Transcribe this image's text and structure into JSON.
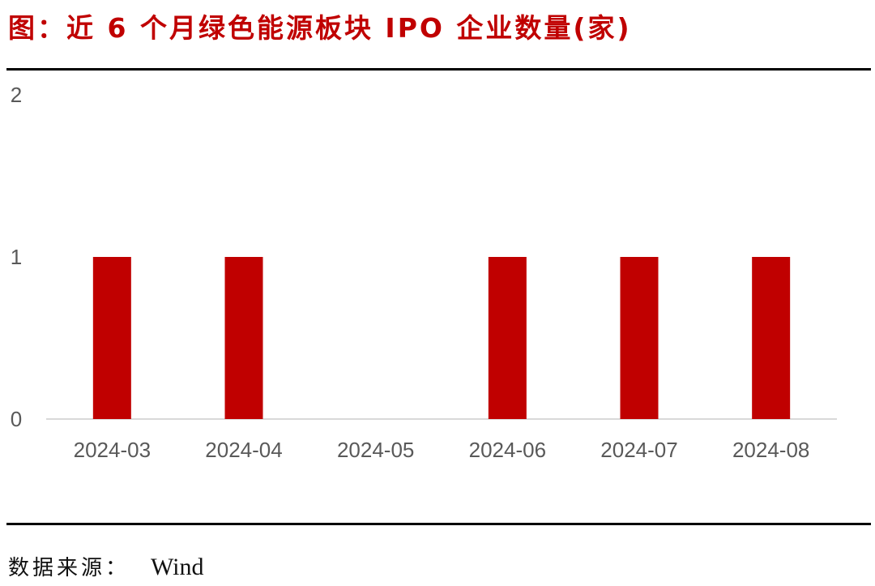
{
  "title": "图：近 6 个月绿色能源板块 IPO 企业数量(家)",
  "source": {
    "label": "数据来源：",
    "value": "Wind"
  },
  "colors": {
    "bar": "#c00000",
    "title": "#c00000",
    "axis": "#d9d9d9",
    "tick_text": "#595959"
  },
  "chart_data": {
    "type": "bar",
    "title": "近 6 个月绿色能源板块 IPO 企业数量(家)",
    "xlabel": "",
    "ylabel": "",
    "categories": [
      "2024-03",
      "2024-04",
      "2024-05",
      "2024-06",
      "2024-07",
      "2024-08"
    ],
    "values": [
      1,
      1,
      0,
      1,
      1,
      1
    ],
    "ylim": [
      0,
      2
    ],
    "yticks": [
      0,
      1,
      2
    ],
    "grid": false,
    "legend": "none"
  }
}
